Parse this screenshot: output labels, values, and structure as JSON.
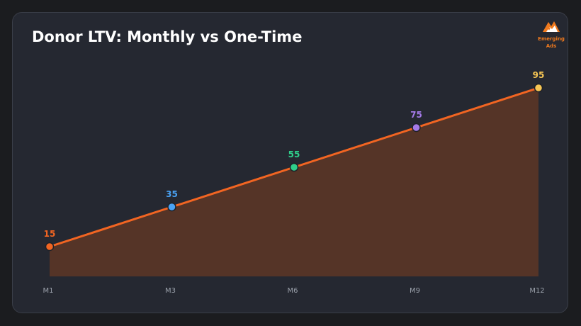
{
  "chart_data": {
    "type": "area",
    "title": "Donor LTV: Monthly vs One-Time",
    "categories": [
      "M1",
      "M3",
      "M6",
      "M9",
      "M12"
    ],
    "values": [
      15,
      35,
      55,
      75,
      95
    ],
    "point_colors": [
      "#f26522",
      "#4aa3f5",
      "#2fcf8b",
      "#a47ae8",
      "#f7c654"
    ],
    "line_color": "#f26522",
    "fill_color": "#553427",
    "ylim": [
      0,
      100
    ],
    "xlabel": "",
    "ylabel": "",
    "grid": false,
    "legend": "none"
  },
  "logo": {
    "line1": "Emerging",
    "line2": "Ads",
    "icon": "mountain-logo-icon",
    "color": "#f07a1e"
  }
}
